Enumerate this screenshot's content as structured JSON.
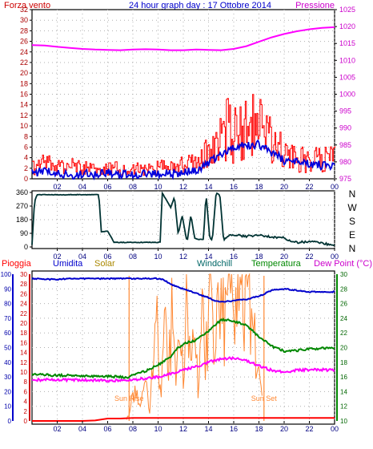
{
  "chart_data": [
    {
      "type": "line",
      "title": "24 hour graph day : 17 Ottobre 2014",
      "left_label": "Forza vento",
      "right_label": "Pressione",
      "x_ticks": [
        "02",
        "04",
        "06",
        "08",
        "10",
        "12",
        "14",
        "16",
        "18",
        "20",
        "22",
        "00"
      ],
      "y_left_ticks": [
        "0",
        "2",
        "4",
        "6",
        "8",
        "10",
        "12",
        "14",
        "16",
        "18",
        "20",
        "22",
        "24",
        "26",
        "28",
        "30",
        "32"
      ],
      "y_right_ticks": [
        "975",
        "980",
        "985",
        "990",
        "995",
        "1000",
        "1005",
        "1010",
        "1015",
        "1020",
        "1025"
      ],
      "ylim_left": [
        0,
        32
      ],
      "ylim_right": [
        975,
        1025
      ],
      "grid": true,
      "colors": {
        "gust": "#ff0000",
        "wind": "#0000dd",
        "pressure": "#ff00ff",
        "frame_bg": "#ffffff",
        "left_axis": "#aa0000",
        "right_axis": "#cc00cc"
      },
      "series": [
        {
          "key": "pressure",
          "axis": "right",
          "x": [
            0,
            1,
            2,
            3,
            4,
            5,
            6,
            7,
            8,
            9,
            10,
            11,
            12,
            13,
            14,
            15,
            16,
            17,
            18,
            19,
            20,
            21,
            22,
            23,
            24
          ],
          "values": [
            1014.5,
            1014.4,
            1014.0,
            1013.7,
            1013.4,
            1013.2,
            1013.1,
            1013.0,
            1013.2,
            1013.3,
            1013.2,
            1013.0,
            1013.0,
            1013.2,
            1013.1,
            1013.0,
            1013.4,
            1014.2,
            1015.5,
            1016.8,
            1017.8,
            1018.6,
            1019.2,
            1019.6,
            1019.8
          ]
        },
        {
          "key": "gust",
          "axis": "left",
          "x": [
            0,
            1,
            2,
            3,
            4,
            5,
            6,
            7,
            8,
            9,
            10,
            11,
            12,
            13,
            14,
            15,
            15.5,
            16,
            16.5,
            17,
            17.5,
            18,
            18.5,
            19,
            19.5,
            20,
            21,
            22,
            23,
            24
          ],
          "values": [
            2.5,
            3.5,
            2.5,
            3,
            2.5,
            2,
            2.5,
            2.5,
            2,
            2.5,
            3,
            3,
            3,
            3.5,
            6,
            9,
            12,
            11,
            11,
            11,
            12,
            11,
            10.5,
            9,
            7,
            5,
            4.5,
            4.5,
            4.5,
            4.5
          ]
        },
        {
          "key": "wind",
          "axis": "left",
          "x": [
            0,
            1,
            2,
            3,
            4,
            5,
            6,
            7,
            8,
            9,
            10,
            11,
            12,
            13,
            14,
            15,
            16,
            17,
            18,
            19,
            20,
            21,
            22,
            23,
            24
          ],
          "values": [
            1,
            1.5,
            1.2,
            0.5,
            1,
            0.8,
            1.2,
            0.8,
            0.8,
            1,
            1,
            1,
            1.2,
            1.5,
            3,
            4.5,
            6,
            6.3,
            6.5,
            5,
            3.5,
            3.5,
            3,
            2.5,
            2.5
          ]
        }
      ]
    },
    {
      "type": "line",
      "x_ticks": [
        "02",
        "04",
        "06",
        "08",
        "10",
        "12",
        "14",
        "16",
        "18",
        "20",
        "22",
        "00"
      ],
      "y_left_ticks": [
        "0",
        "90",
        "180",
        "270",
        "360"
      ],
      "y_right_ticks": [
        "N",
        "W",
        "S",
        "E",
        "N"
      ],
      "ylim_left": [
        0,
        360
      ],
      "colors": {
        "direction": "#003333"
      },
      "series": [
        {
          "key": "direction",
          "x": [
            0,
            0.2,
            0.4,
            5.3,
            5.5,
            6,
            6.5,
            9.5,
            10,
            10.2,
            10.3,
            11,
            11.3,
            11.6,
            11.9,
            12.3,
            12.6,
            12.9,
            13.2,
            13.6,
            13.8,
            14.1,
            14.3,
            14.6,
            14.9,
            15.2,
            15.6,
            16,
            17,
            18,
            19,
            20,
            20.5,
            21,
            22,
            23,
            23.6,
            24
          ],
          "values": [
            15,
            300,
            345,
            345,
            100,
            105,
            30,
            30,
            30,
            35,
            360,
            260,
            330,
            80,
            210,
            30,
            210,
            60,
            50,
            50,
            355,
            60,
            45,
            355,
            345,
            40,
            75,
            80,
            70,
            80,
            65,
            60,
            35,
            30,
            35,
            25,
            15,
            10
          ]
        }
      ]
    },
    {
      "type": "line",
      "labels": {
        "rain": "Pioggia",
        "humidity": "Umidita",
        "solar": "Solar",
        "windchill": "Windchill",
        "temperature": "Temperatura",
        "dewpoint": "Dew Point (°C)"
      },
      "x_ticks": [
        "02",
        "04",
        "06",
        "08",
        "10",
        "12",
        "14",
        "16",
        "18",
        "20",
        "22",
        "00"
      ],
      "y_humidity_ticks": [
        "0",
        "10",
        "20",
        "30",
        "40",
        "50",
        "60",
        "70",
        "80",
        "90",
        "100"
      ],
      "y_rain_ticks": [
        "0",
        "2",
        "4",
        "6",
        "8",
        "10",
        "12",
        "14",
        "16",
        "18",
        "20",
        "22",
        "24",
        "26",
        "28",
        "30"
      ],
      "y_temp_ticks": [
        "10",
        "12",
        "14",
        "16",
        "18",
        "20",
        "22",
        "24",
        "26",
        "28",
        "30"
      ],
      "ylim_humidity": [
        0,
        100
      ],
      "ylim_temp": [
        10,
        30
      ],
      "annotations": [
        {
          "text": "Sun Rise",
          "x": 7.7
        },
        {
          "text": "Sun Set",
          "x": 18.4
        }
      ],
      "colors": {
        "rain": "#ff0000",
        "humidity": "#0000cc",
        "solar": "#ff8833",
        "temperature": "#008800",
        "dewpoint": "#ff00ff",
        "windchill": "#006666"
      },
      "series": [
        {
          "key": "humidity",
          "unit": "%",
          "x": [
            0,
            1,
            2,
            3,
            4,
            5,
            6,
            7,
            8,
            9,
            10,
            10.5,
            11,
            12,
            13,
            14,
            14.5,
            15,
            16,
            17,
            18,
            18.5,
            19,
            20,
            21,
            22,
            23,
            24
          ],
          "values": [
            97,
            96.5,
            96.5,
            97,
            97,
            97,
            97,
            97,
            97,
            97,
            97,
            96,
            93,
            90,
            87,
            84,
            82,
            81,
            82,
            83,
            85,
            87,
            89,
            90,
            89,
            88,
            88,
            88
          ]
        },
        {
          "key": "temperature",
          "unit": "°C",
          "x": [
            0,
            1,
            2,
            3,
            4,
            5,
            6,
            7,
            7.5,
            8,
            9,
            10,
            11,
            11.5,
            12,
            13,
            14,
            14.5,
            15,
            16,
            17,
            18,
            19,
            20,
            21,
            22,
            23,
            24
          ],
          "values": [
            16.3,
            16.3,
            16.2,
            16.2,
            16.1,
            16.1,
            16.1,
            16.0,
            15.9,
            16.2,
            16.8,
            17.6,
            18.8,
            19.8,
            20.5,
            21.0,
            22.2,
            23.0,
            23.8,
            23.6,
            23.0,
            21.5,
            20.2,
            19.5,
            19.6,
            19.8,
            19.9,
            19.9
          ]
        },
        {
          "key": "dewpoint",
          "unit": "°C",
          "x": [
            0,
            2,
            4,
            6,
            7,
            8,
            9,
            10,
            11,
            12,
            13,
            14,
            15,
            16,
            17,
            18,
            19,
            20,
            21,
            22,
            23,
            24
          ],
          "values": [
            15.6,
            15.6,
            15.6,
            15.5,
            15.5,
            15.6,
            15.8,
            16.0,
            16.4,
            17.0,
            17.4,
            18.0,
            18.4,
            18.6,
            18.2,
            17.5,
            16.9,
            16.7,
            16.9,
            17.0,
            17.0,
            16.9
          ]
        },
        {
          "key": "rain",
          "unit": "mm",
          "x": [
            0,
            4,
            5,
            6,
            7,
            8,
            9,
            10,
            12,
            16,
            20,
            24
          ],
          "values": [
            0,
            0,
            0.1,
            0.5,
            0.5,
            0.6,
            0.6,
            0.6,
            0.6,
            0.6,
            0.6,
            0.6
          ]
        },
        {
          "key": "solar",
          "unit": "%",
          "x": [
            7.5,
            7.8,
            8.1,
            8.4,
            8.7,
            9,
            9.3,
            9.6,
            9.9,
            10.2,
            10.5,
            10.8,
            11.1,
            11.4,
            11.7,
            12,
            12.3,
            12.6,
            12.9,
            13.2,
            13.5,
            13.8,
            14.1,
            14.4,
            14.7,
            15,
            15.3,
            15.6,
            15.9,
            16.2,
            16.5,
            16.8,
            17.1,
            17.4,
            17.7,
            18,
            18.3
          ],
          "values": [
            1,
            8,
            20,
            14,
            12,
            28,
            5,
            35,
            70,
            18,
            66,
            30,
            75,
            40,
            72,
            22,
            80,
            60,
            68,
            12,
            70,
            45,
            84,
            55,
            72,
            80,
            62,
            90,
            78,
            88,
            85,
            74,
            85,
            68,
            50,
            30,
            10
          ]
        }
      ]
    }
  ]
}
